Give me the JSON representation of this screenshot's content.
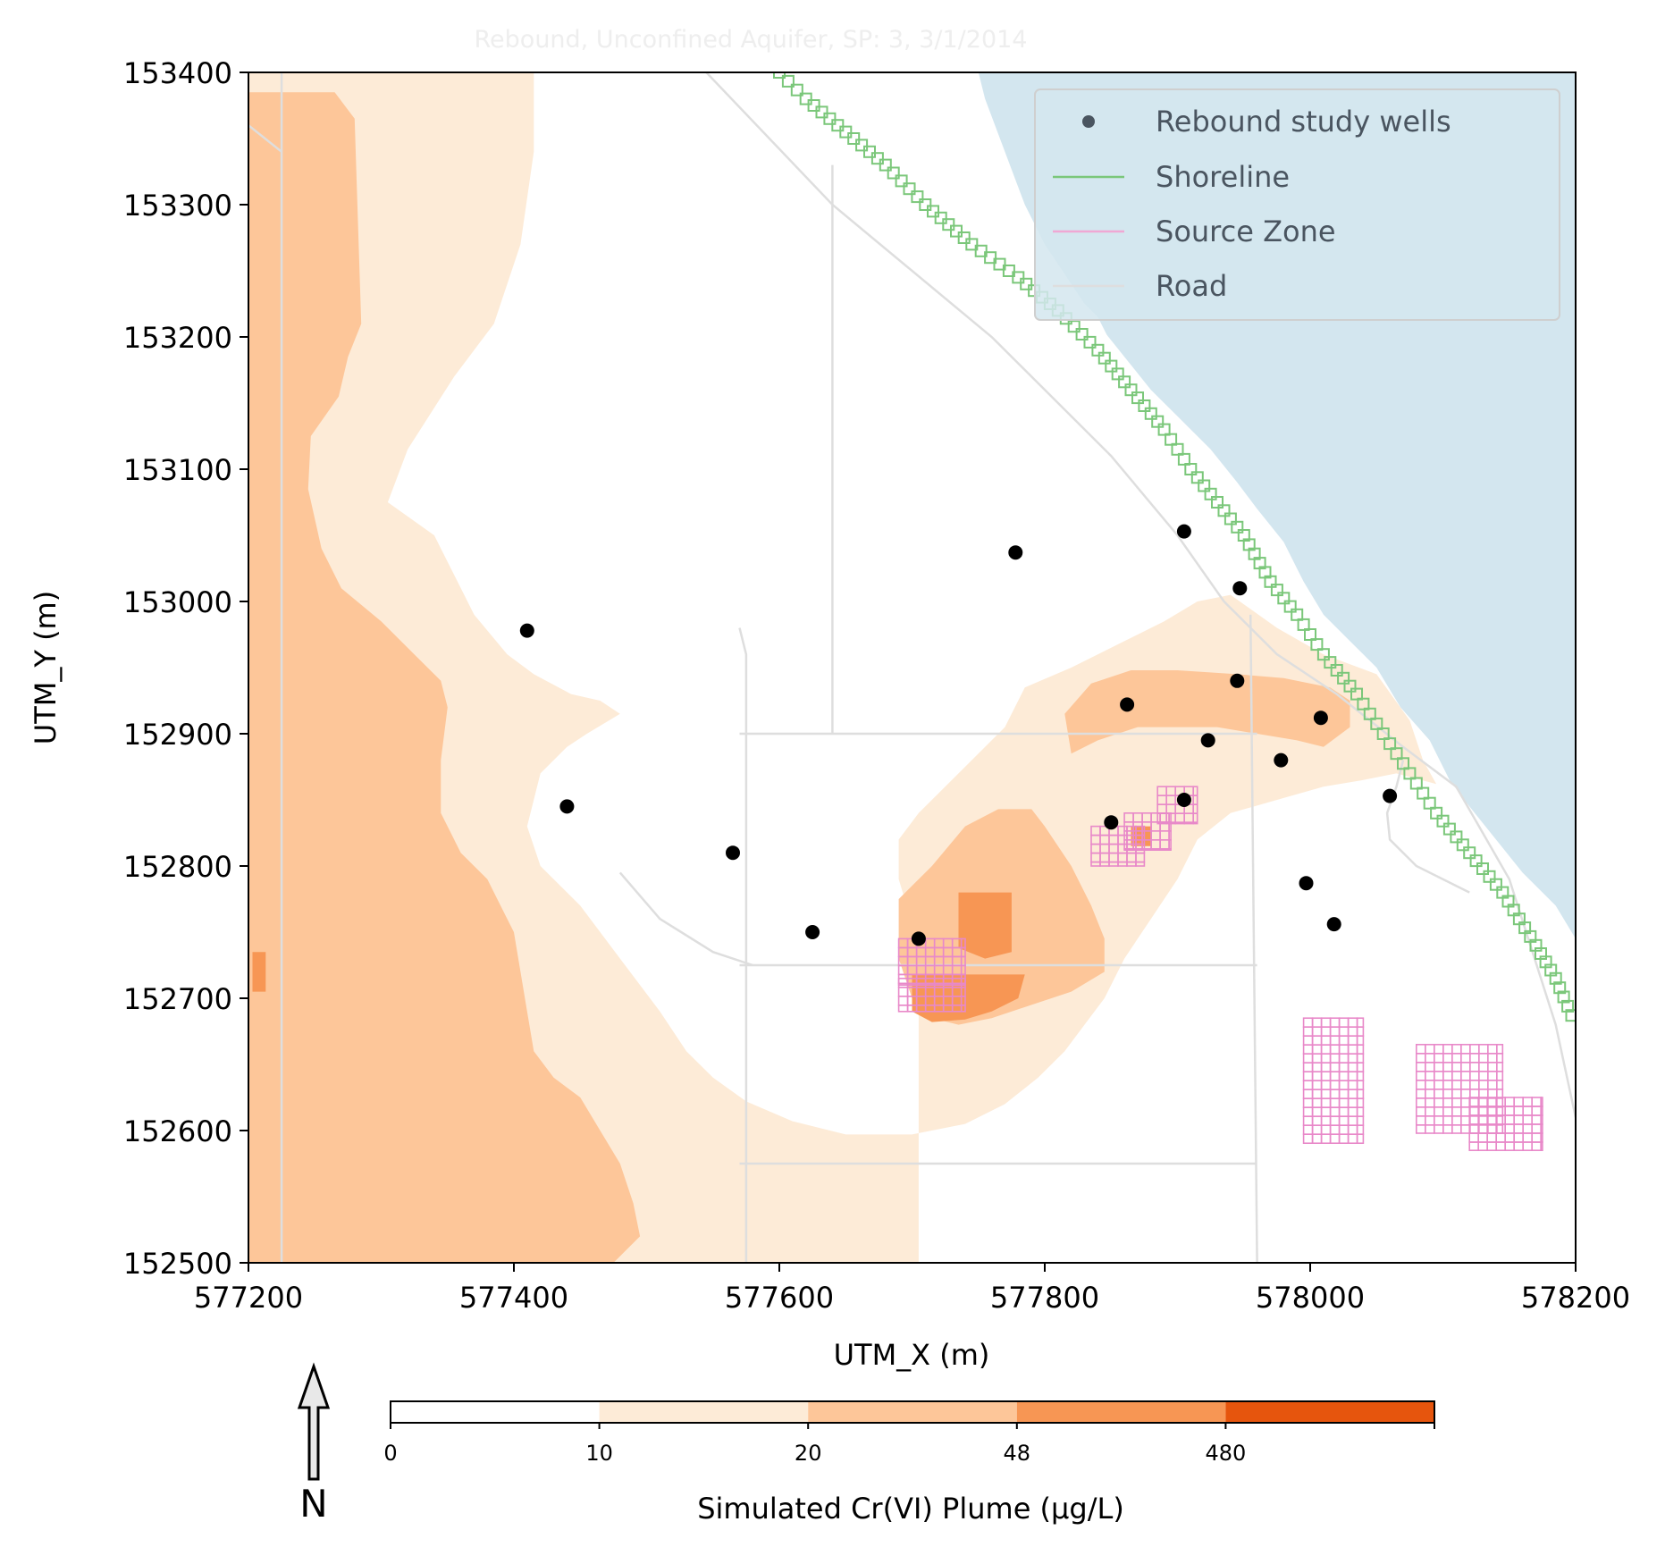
{
  "chart_data": {
    "type": "map",
    "title": "Rebound, Unconfined Aquifer, SP: 3, 3/1/2014",
    "xlabel": "UTM_X (m)",
    "ylabel": "UTM_Y (m)",
    "xlim": [
      577200,
      578200
    ],
    "ylim": [
      152500,
      153400
    ],
    "x_ticks": [
      577200,
      577400,
      577600,
      577800,
      578000,
      578200
    ],
    "y_ticks": [
      152500,
      152600,
      152700,
      152800,
      152900,
      153000,
      153100,
      153200,
      153300,
      153400
    ],
    "legend": {
      "placement": "top-right",
      "entries": [
        "Rebound study wells",
        "Shoreline",
        "Source Zone",
        "Road"
      ]
    },
    "colorbar": {
      "label": "Simulated Cr(VI) Plume (µg/L)",
      "tick_labels": [
        "0",
        "10",
        "20",
        "48",
        "480"
      ],
      "colors": [
        "#ffffff",
        "#fdebd7",
        "#fdc699",
        "#f79654",
        "#e6550d"
      ]
    },
    "north_arrow_label": "N",
    "colors": {
      "water": "#d3e6ef",
      "shoreline": "#7bc77a",
      "source_zone": "#e889c9",
      "road": "#dedede",
      "wells": "#000000"
    },
    "wells": [
      {
        "x": 577410,
        "y": 152978
      },
      {
        "x": 577440,
        "y": 152845
      },
      {
        "x": 577565,
        "y": 152810
      },
      {
        "x": 577625,
        "y": 152750
      },
      {
        "x": 577705,
        "y": 152745
      },
      {
        "x": 577778,
        "y": 153037
      },
      {
        "x": 577905,
        "y": 153053
      },
      {
        "x": 577947,
        "y": 153010
      },
      {
        "x": 577945,
        "y": 152940
      },
      {
        "x": 577862,
        "y": 152922
      },
      {
        "x": 577923,
        "y": 152895
      },
      {
        "x": 577978,
        "y": 152880
      },
      {
        "x": 578008,
        "y": 152912
      },
      {
        "x": 577850,
        "y": 152833
      },
      {
        "x": 577905,
        "y": 152850
      },
      {
        "x": 577997,
        "y": 152787
      },
      {
        "x": 578018,
        "y": 152756
      },
      {
        "x": 578060,
        "y": 152853
      }
    ],
    "plume_zones": [
      {
        "level": "10-20",
        "polygon": [
          [
            577200,
            153400
          ],
          [
            577415,
            153400
          ],
          [
            577415,
            153340
          ],
          [
            577405,
            153270
          ],
          [
            577385,
            153210
          ],
          [
            577355,
            153170
          ],
          [
            577320,
            153115
          ],
          [
            577305,
            153075
          ],
          [
            577340,
            153050
          ],
          [
            577355,
            153020
          ],
          [
            577370,
            152990
          ],
          [
            577395,
            152960
          ],
          [
            577415,
            152945
          ],
          [
            577443,
            152930
          ],
          [
            577465,
            152925
          ],
          [
            577480,
            152915
          ],
          [
            577455,
            152900
          ],
          [
            577440,
            152890
          ],
          [
            577420,
            152870
          ],
          [
            577410,
            152830
          ],
          [
            577420,
            152800
          ],
          [
            577450,
            152770
          ],
          [
            577480,
            152730
          ],
          [
            577510,
            152690
          ],
          [
            577530,
            152660
          ],
          [
            577550,
            152640
          ],
          [
            577575,
            152622
          ],
          [
            577610,
            152607
          ],
          [
            577650,
            152597
          ],
          [
            577700,
            152597
          ],
          [
            577740,
            152605
          ],
          [
            577770,
            152620
          ],
          [
            577795,
            152640
          ],
          [
            577815,
            152660
          ],
          [
            577830,
            152680
          ],
          [
            577845,
            152700
          ],
          [
            577860,
            152730
          ],
          [
            577880,
            152760
          ],
          [
            577900,
            152790
          ],
          [
            577915,
            152820
          ],
          [
            577940,
            152840
          ],
          [
            577975,
            152850
          ],
          [
            578010,
            152860
          ],
          [
            578040,
            152865
          ],
          [
            578065,
            152870
          ],
          [
            578095,
            152862
          ],
          [
            578085,
            152880
          ],
          [
            578075,
            152910
          ],
          [
            578050,
            152945
          ],
          [
            578010,
            152960
          ],
          [
            577975,
            152980
          ],
          [
            577940,
            153005
          ],
          [
            577915,
            153000
          ],
          [
            577890,
            152985
          ],
          [
            577860,
            152970
          ],
          [
            577820,
            152950
          ],
          [
            577785,
            152935
          ],
          [
            577770,
            152905
          ],
          [
            577740,
            152875
          ],
          [
            577705,
            152840
          ],
          [
            577690,
            152820
          ],
          [
            577690,
            152790
          ],
          [
            577705,
            152740
          ],
          [
            577705,
            152500
          ],
          [
            577200,
            152500
          ]
        ]
      },
      {
        "level": "20-48",
        "polygon": [
          [
            577200,
            153385
          ],
          [
            577265,
            153385
          ],
          [
            577280,
            153365
          ],
          [
            577285,
            153210
          ],
          [
            577275,
            153185
          ],
          [
            577268,
            153155
          ],
          [
            577247,
            153125
          ],
          [
            577245,
            153085
          ],
          [
            577255,
            153040
          ],
          [
            577270,
            153010
          ],
          [
            577300,
            152985
          ],
          [
            577325,
            152960
          ],
          [
            577345,
            152940
          ],
          [
            577350,
            152920
          ],
          [
            577345,
            152880
          ],
          [
            577345,
            152840
          ],
          [
            577360,
            152810
          ],
          [
            577380,
            152790
          ],
          [
            577390,
            152770
          ],
          [
            577400,
            152750
          ],
          [
            577405,
            152720
          ],
          [
            577410,
            152690
          ],
          [
            577415,
            152660
          ],
          [
            577430,
            152640
          ],
          [
            577450,
            152625
          ],
          [
            577465,
            152600
          ],
          [
            577480,
            152575
          ],
          [
            577490,
            152545
          ],
          [
            577495,
            152520
          ],
          [
            577475,
            152500
          ],
          [
            577200,
            152500
          ]
        ]
      },
      {
        "level": "20-48",
        "polygon": [
          [
            577690,
            152775
          ],
          [
            577715,
            152800
          ],
          [
            577740,
            152830
          ],
          [
            577765,
            152843
          ],
          [
            577790,
            152843
          ],
          [
            577800,
            152830
          ],
          [
            577820,
            152800
          ],
          [
            577835,
            152770
          ],
          [
            577845,
            152745
          ],
          [
            577845,
            152720
          ],
          [
            577820,
            152705
          ],
          [
            577790,
            152695
          ],
          [
            577760,
            152685
          ],
          [
            577735,
            152680
          ],
          [
            577715,
            152685
          ],
          [
            577700,
            152700
          ],
          [
            577690,
            152730
          ]
        ]
      },
      {
        "level": "20-48",
        "polygon": [
          [
            577815,
            152915
          ],
          [
            577835,
            152938
          ],
          [
            577865,
            152948
          ],
          [
            577900,
            152948
          ],
          [
            577945,
            152945
          ],
          [
            577980,
            152942
          ],
          [
            578015,
            152935
          ],
          [
            578030,
            152925
          ],
          [
            578030,
            152905
          ],
          [
            578010,
            152890
          ],
          [
            577990,
            152895
          ],
          [
            577960,
            152900
          ],
          [
            577930,
            152905
          ],
          [
            577900,
            152905
          ],
          [
            577870,
            152905
          ],
          [
            577840,
            152895
          ],
          [
            577820,
            152885
          ]
        ]
      },
      {
        "level": "48-480",
        "polygon": [
          [
            577735,
            152780
          ],
          [
            577775,
            152780
          ],
          [
            577775,
            152735
          ],
          [
            577755,
            152730
          ],
          [
            577735,
            152738
          ]
        ]
      },
      {
        "level": "48-480",
        "polygon": [
          [
            577700,
            152718
          ],
          [
            577785,
            152718
          ],
          [
            577780,
            152700
          ],
          [
            577760,
            152690
          ],
          [
            577740,
            152684
          ],
          [
            577715,
            152682
          ],
          [
            577700,
            152690
          ]
        ]
      },
      {
        "level": "48-480",
        "polygon": [
          [
            577203,
            152735
          ],
          [
            577213,
            152735
          ],
          [
            577213,
            152705
          ],
          [
            577203,
            152705
          ]
        ]
      },
      {
        "level": "48-480",
        "polygon": [
          [
            577865,
            152830
          ],
          [
            577880,
            152830
          ],
          [
            577880,
            152815
          ],
          [
            577865,
            152815
          ]
        ]
      }
    ],
    "source_zones": [
      {
        "x0": 577690,
        "x1": 577740,
        "y0": 152710,
        "y1": 152745
      },
      {
        "x0": 577690,
        "x1": 577740,
        "y0": 152690,
        "y1": 152715
      },
      {
        "x0": 577835,
        "x1": 577875,
        "y0": 152800,
        "y1": 152830
      },
      {
        "x0": 577860,
        "x1": 577895,
        "y0": 152812,
        "y1": 152840
      },
      {
        "x0": 577885,
        "x1": 577915,
        "y0": 152832,
        "y1": 152860
      },
      {
        "x0": 577995,
        "x1": 578040,
        "y0": 152590,
        "y1": 152685
      },
      {
        "x0": 578080,
        "x1": 578145,
        "y0": 152598,
        "y1": 152665
      },
      {
        "x0": 578120,
        "x1": 578175,
        "y0": 152585,
        "y1": 152625
      }
    ],
    "roads": [
      [
        [
          577225,
          153400
        ],
        [
          577225,
          152500
        ]
      ],
      [
        [
          577200,
          153360
        ],
        [
          577225,
          153340
        ]
      ],
      [
        [
          577545,
          153400
        ],
        [
          577640,
          153300
        ],
        [
          577760,
          153200
        ],
        [
          577850,
          153110
        ],
        [
          577900,
          153050
        ],
        [
          577935,
          153000
        ],
        [
          577975,
          152960
        ],
        [
          578020,
          152930
        ],
        [
          578070,
          152890
        ],
        [
          578110,
          152860
        ],
        [
          578150,
          152790
        ],
        [
          578185,
          152680
        ],
        [
          578200,
          152610
        ]
      ],
      [
        [
          577570,
          152980
        ],
        [
          577575,
          152960
        ],
        [
          577575,
          152500
        ]
      ],
      [
        [
          577640,
          153330
        ],
        [
          577640,
          152900
        ]
      ],
      [
        [
          577570,
          152900
        ],
        [
          577960,
          152900
        ]
      ],
      [
        [
          577955,
          152990
        ],
        [
          577960,
          152500
        ]
      ],
      [
        [
          577570,
          152725
        ],
        [
          577960,
          152725
        ]
      ],
      [
        [
          577570,
          152575
        ],
        [
          577960,
          152575
        ]
      ],
      [
        [
          577480,
          152795
        ],
        [
          577510,
          152760
        ],
        [
          577550,
          152735
        ],
        [
          577580,
          152725
        ]
      ],
      [
        [
          578070,
          152880
        ],
        [
          578065,
          152860
        ],
        [
          578058,
          152840
        ],
        [
          578060,
          152820
        ],
        [
          578080,
          152800
        ],
        [
          578120,
          152780
        ]
      ]
    ],
    "shoreline": [
      [
        577600,
        153400
      ],
      [
        577620,
        153380
      ],
      [
        577650,
        153355
      ],
      [
        577680,
        153330
      ],
      [
        577710,
        153300
      ],
      [
        577745,
        153270
      ],
      [
        577780,
        153245
      ],
      [
        577810,
        153220
      ],
      [
        577840,
        153190
      ],
      [
        577865,
        153160
      ],
      [
        577890,
        153130
      ],
      [
        577910,
        153100
      ],
      [
        577930,
        153075
      ],
      [
        577950,
        153050
      ],
      [
        577970,
        153015
      ],
      [
        577990,
        152990
      ],
      [
        578010,
        152960
      ],
      [
        578035,
        152930
      ],
      [
        578055,
        152900
      ],
      [
        578075,
        152870
      ],
      [
        578095,
        152840
      ],
      [
        578120,
        152810
      ],
      [
        578145,
        152780
      ],
      [
        578170,
        152740
      ],
      [
        578185,
        152715
      ],
      [
        578200,
        152680
      ]
    ],
    "water": [
      [
        577750,
        153400
      ],
      [
        578200,
        153400
      ],
      [
        578200,
        152745
      ],
      [
        578185,
        152770
      ],
      [
        578160,
        152795
      ],
      [
        578140,
        152820
      ],
      [
        578120,
        152845
      ],
      [
        578105,
        152865
      ],
      [
        578090,
        152895
      ],
      [
        578068,
        152920
      ],
      [
        578050,
        152950
      ],
      [
        578030,
        152970
      ],
      [
        578010,
        152990
      ],
      [
        577995,
        153015
      ],
      [
        577980,
        153045
      ],
      [
        577960,
        153070
      ],
      [
        577945,
        153090
      ],
      [
        577925,
        153115
      ],
      [
        577900,
        153140
      ],
      [
        577880,
        153160
      ],
      [
        577860,
        153185
      ],
      [
        577840,
        153210
      ],
      [
        577820,
        153240
      ],
      [
        577800,
        153270
      ],
      [
        577785,
        153300
      ],
      [
        577770,
        153340
      ],
      [
        577755,
        153380
      ]
    ],
    "island": [
      [
        577760,
        153265
      ],
      [
        577800,
        153230
      ],
      [
        577830,
        153210
      ],
      [
        577850,
        153195
      ],
      [
        577840,
        153215
      ],
      [
        577815,
        153240
      ],
      [
        577790,
        153265
      ],
      [
        577770,
        153280
      ]
    ]
  }
}
